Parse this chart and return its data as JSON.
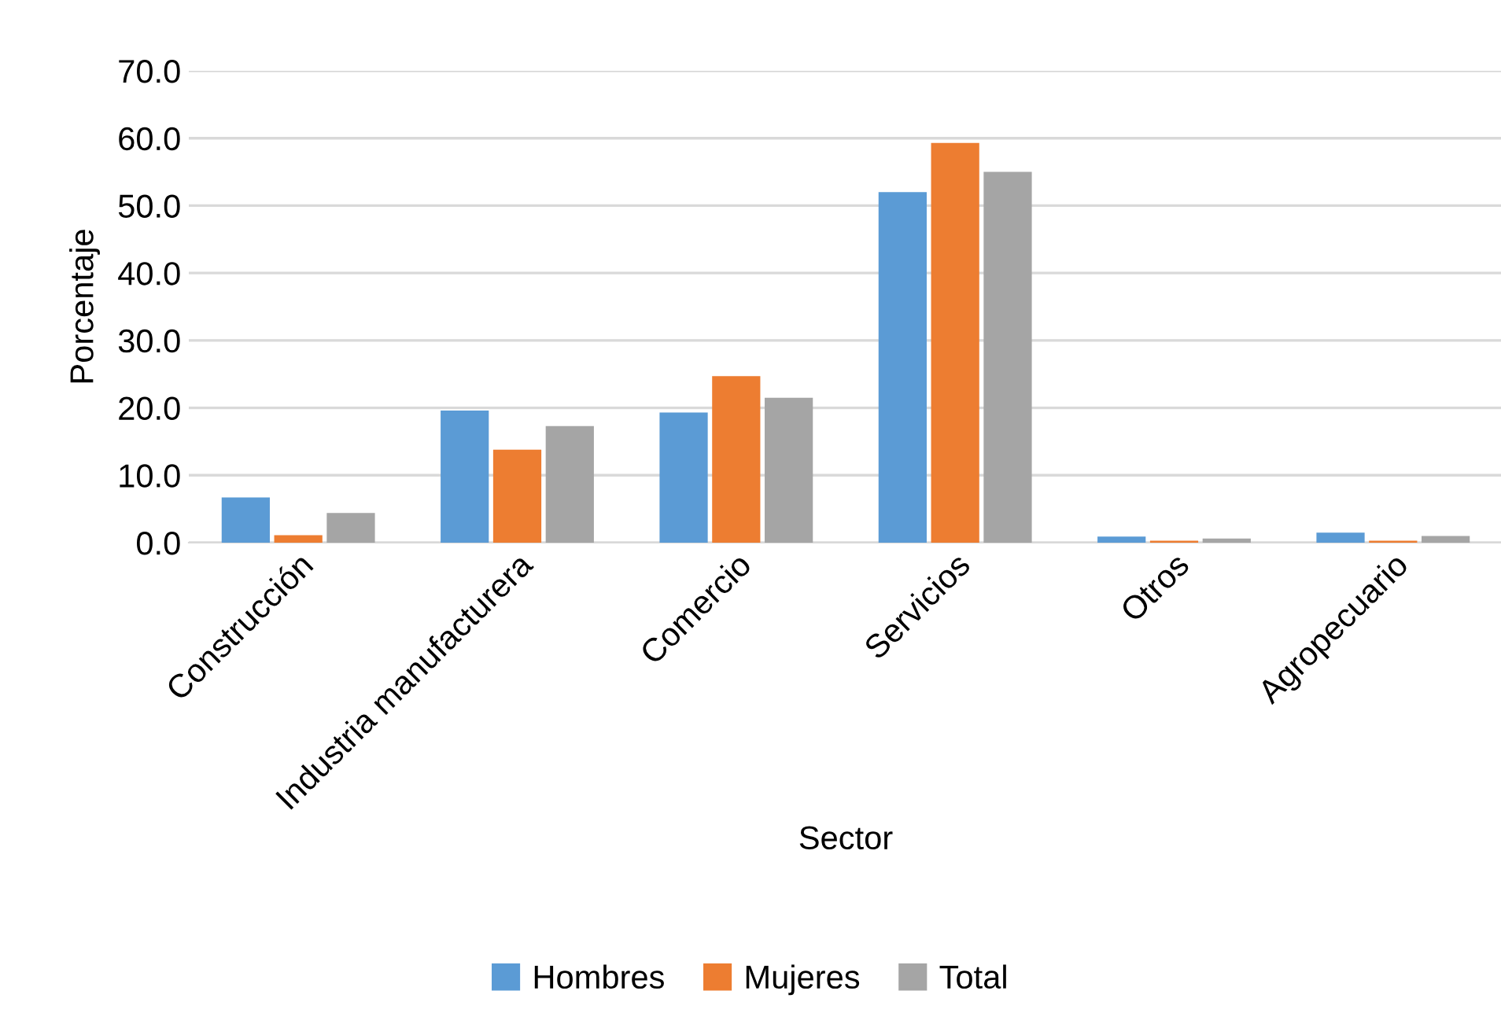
{
  "chart_data": {
    "type": "bar",
    "xlabel": "Sector",
    "ylabel": "Porcentaje",
    "categories": [
      "Construcción",
      "Industria manufacturera",
      "Comercio",
      "Servicios",
      "Otros",
      "Agropecuario"
    ],
    "series": [
      {
        "name": "Hombres",
        "color": "#5b9bd5",
        "values": [
          6.7,
          19.6,
          19.3,
          52.0,
          0.9,
          1.5
        ]
      },
      {
        "name": "Mujeres",
        "color": "#ed7d31",
        "values": [
          1.1,
          13.8,
          24.7,
          59.3,
          0.3,
          0.3
        ]
      },
      {
        "name": "Total",
        "color": "#a5a5a5",
        "values": [
          4.4,
          17.3,
          21.5,
          55.0,
          0.6,
          1.0
        ]
      }
    ],
    "ylim": [
      0,
      70
    ],
    "yticks": [
      {
        "value": 0,
        "label": "0.0"
      },
      {
        "value": 10,
        "label": "10.0"
      },
      {
        "value": 20,
        "label": "20.0"
      },
      {
        "value": 30,
        "label": "30.0"
      },
      {
        "value": 40,
        "label": "40.0"
      },
      {
        "value": 50,
        "label": "50.0"
      },
      {
        "value": 60,
        "label": "60.0"
      },
      {
        "value": 70,
        "label": "70.0"
      }
    ],
    "grid": "y",
    "legend": "bottom"
  }
}
